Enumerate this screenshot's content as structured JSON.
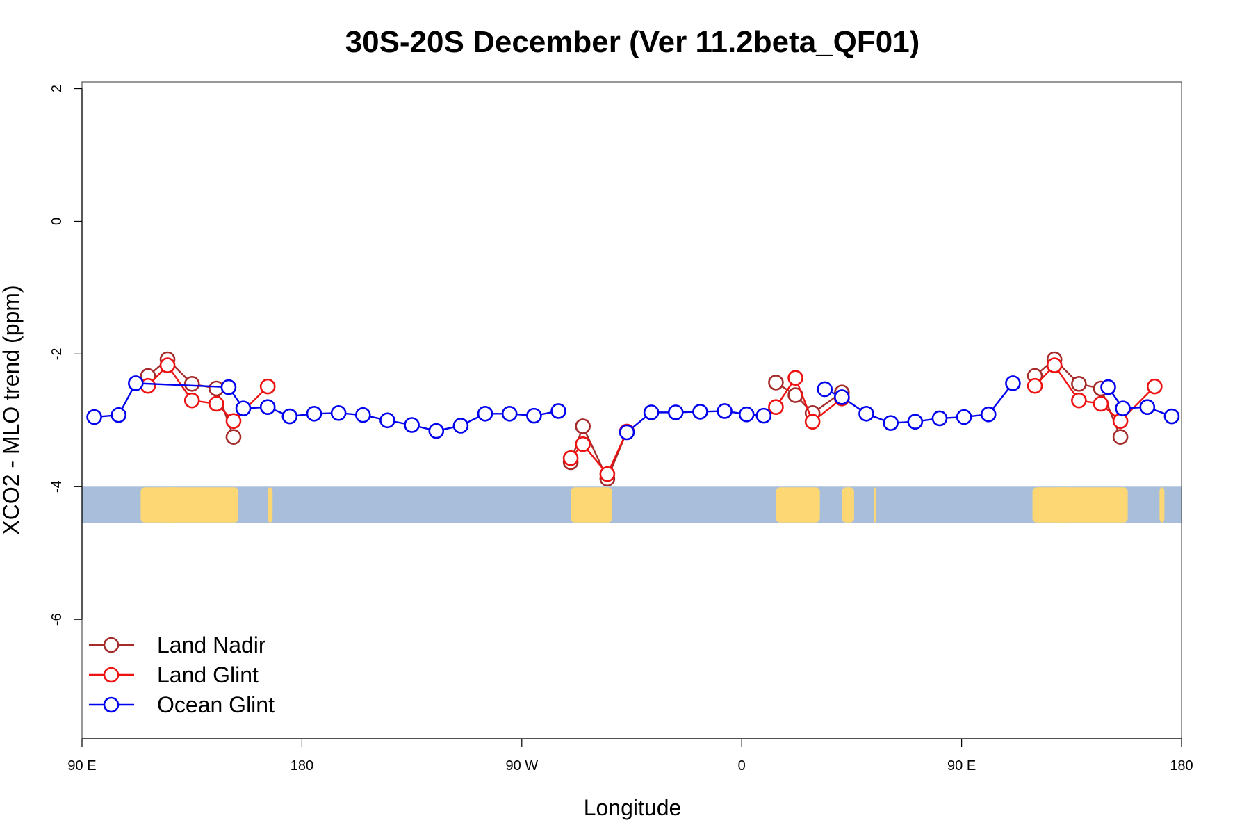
{
  "chart_data": {
    "type": "line",
    "title": "30S-20S December (Ver 11.2beta_QF01)",
    "xlabel": "Longitude",
    "ylabel": "XCO2 - MLO trend (ppm)",
    "xlim": [
      90,
      540
    ],
    "ylim": [
      -7.8,
      2.1
    ],
    "x_ticks": [
      {
        "value": 90,
        "label": "90 E"
      },
      {
        "value": 180,
        "label": "180"
      },
      {
        "value": 270,
        "label": "90 W"
      },
      {
        "value": 360,
        "label": "0"
      },
      {
        "value": 450,
        "label": "90 E"
      },
      {
        "value": 540,
        "label": "180"
      }
    ],
    "y_ticks": [
      {
        "value": 2,
        "label": "2"
      },
      {
        "value": 0,
        "label": "0"
      },
      {
        "value": -2,
        "label": "-2"
      },
      {
        "value": -4,
        "label": "-4"
      },
      {
        "value": -6,
        "label": "-6"
      }
    ],
    "map_strip": {
      "y_range": [
        -4.55,
        -4.0
      ],
      "ocean_color": "#a8bedb",
      "land_color": "#fcd773",
      "land_segments": [
        [
          114,
          130
        ],
        [
          123,
          154
        ],
        [
          166,
          168
        ],
        [
          290,
          307
        ],
        [
          374,
          392
        ],
        [
          401,
          406
        ],
        [
          414,
          415
        ],
        [
          479,
          495
        ],
        [
          488,
          518
        ],
        [
          531,
          533
        ]
      ]
    },
    "series": [
      {
        "name": "Land Nadir",
        "color": "#a52a2a",
        "segments": [
          [
            [
              117,
              -2.33
            ],
            [
              125,
              -2.08
            ],
            [
              135,
              -2.45
            ],
            [
              145,
              -2.52
            ],
            [
              152,
              -3.25
            ]
          ],
          [
            [
              290,
              -3.63
            ],
            [
              295,
              -3.09
            ],
            [
              305,
              -3.88
            ],
            [
              313,
              -3.17
            ]
          ],
          [
            [
              374,
              -2.43
            ],
            [
              382,
              -2.62
            ],
            [
              389,
              -2.89
            ],
            [
              401,
              -2.58
            ]
          ],
          [
            [
              480,
              -2.33
            ],
            [
              488,
              -2.08
            ],
            [
              498,
              -2.45
            ],
            [
              507,
              -2.52
            ],
            [
              515,
              -3.25
            ]
          ]
        ]
      },
      {
        "name": "Land Glint",
        "color": "#ee1111",
        "segments": [
          [
            [
              117,
              -2.48
            ],
            [
              125,
              -2.17
            ],
            [
              135,
              -2.7
            ],
            [
              145,
              -2.75
            ],
            [
              152,
              -3.01
            ],
            [
              166,
              -2.49
            ]
          ],
          [
            [
              290,
              -3.57
            ],
            [
              295,
              -3.36
            ],
            [
              305,
              -3.81
            ],
            [
              313,
              -3.17
            ]
          ],
          [
            [
              374,
              -2.8
            ],
            [
              382,
              -2.36
            ],
            [
              389,
              -3.02
            ],
            [
              401,
              -2.67
            ]
          ],
          [
            [
              480,
              -2.48
            ],
            [
              488,
              -2.17
            ],
            [
              498,
              -2.7
            ],
            [
              507,
              -2.75
            ],
            [
              515,
              -3.01
            ],
            [
              529,
              -2.49
            ]
          ]
        ]
      },
      {
        "name": "Ocean Glint",
        "color": "#0000ee",
        "segments": [
          [
            [
              95,
              -2.95
            ],
            [
              105,
              -2.92
            ],
            [
              112,
              -2.44
            ],
            [
              150,
              -2.5
            ],
            [
              156,
              -2.82
            ],
            [
              166,
              -2.8
            ],
            [
              175,
              -2.94
            ],
            [
              185,
              -2.9
            ],
            [
              195,
              -2.89
            ],
            [
              205,
              -2.92
            ],
            [
              215,
              -3.0
            ],
            [
              225,
              -3.07
            ],
            [
              235,
              -3.16
            ],
            [
              245,
              -3.08
            ],
            [
              255,
              -2.9
            ],
            [
              265,
              -2.9
            ],
            [
              275,
              -2.93
            ],
            [
              285,
              -2.86
            ]
          ],
          [
            [
              313,
              -3.18
            ],
            [
              323,
              -2.88
            ],
            [
              333,
              -2.88
            ],
            [
              343,
              -2.87
            ],
            [
              353,
              -2.86
            ],
            [
              362,
              -2.91
            ],
            [
              369,
              -2.93
            ]
          ],
          [
            [
              394,
              -2.53
            ],
            [
              401,
              -2.65
            ],
            [
              411,
              -2.9
            ],
            [
              421,
              -3.04
            ],
            [
              431,
              -3.02
            ],
            [
              441,
              -2.97
            ],
            [
              451,
              -2.95
            ],
            [
              461,
              -2.91
            ],
            [
              471,
              -2.44
            ]
          ],
          [
            [
              510,
              -2.5
            ],
            [
              516,
              -2.82
            ],
            [
              526,
              -2.8
            ],
            [
              536,
              -2.94
            ]
          ]
        ]
      }
    ],
    "legend": {
      "position": "bottom-left",
      "entries": [
        "Land Nadir",
        "Land Glint",
        "Ocean Glint"
      ]
    }
  }
}
